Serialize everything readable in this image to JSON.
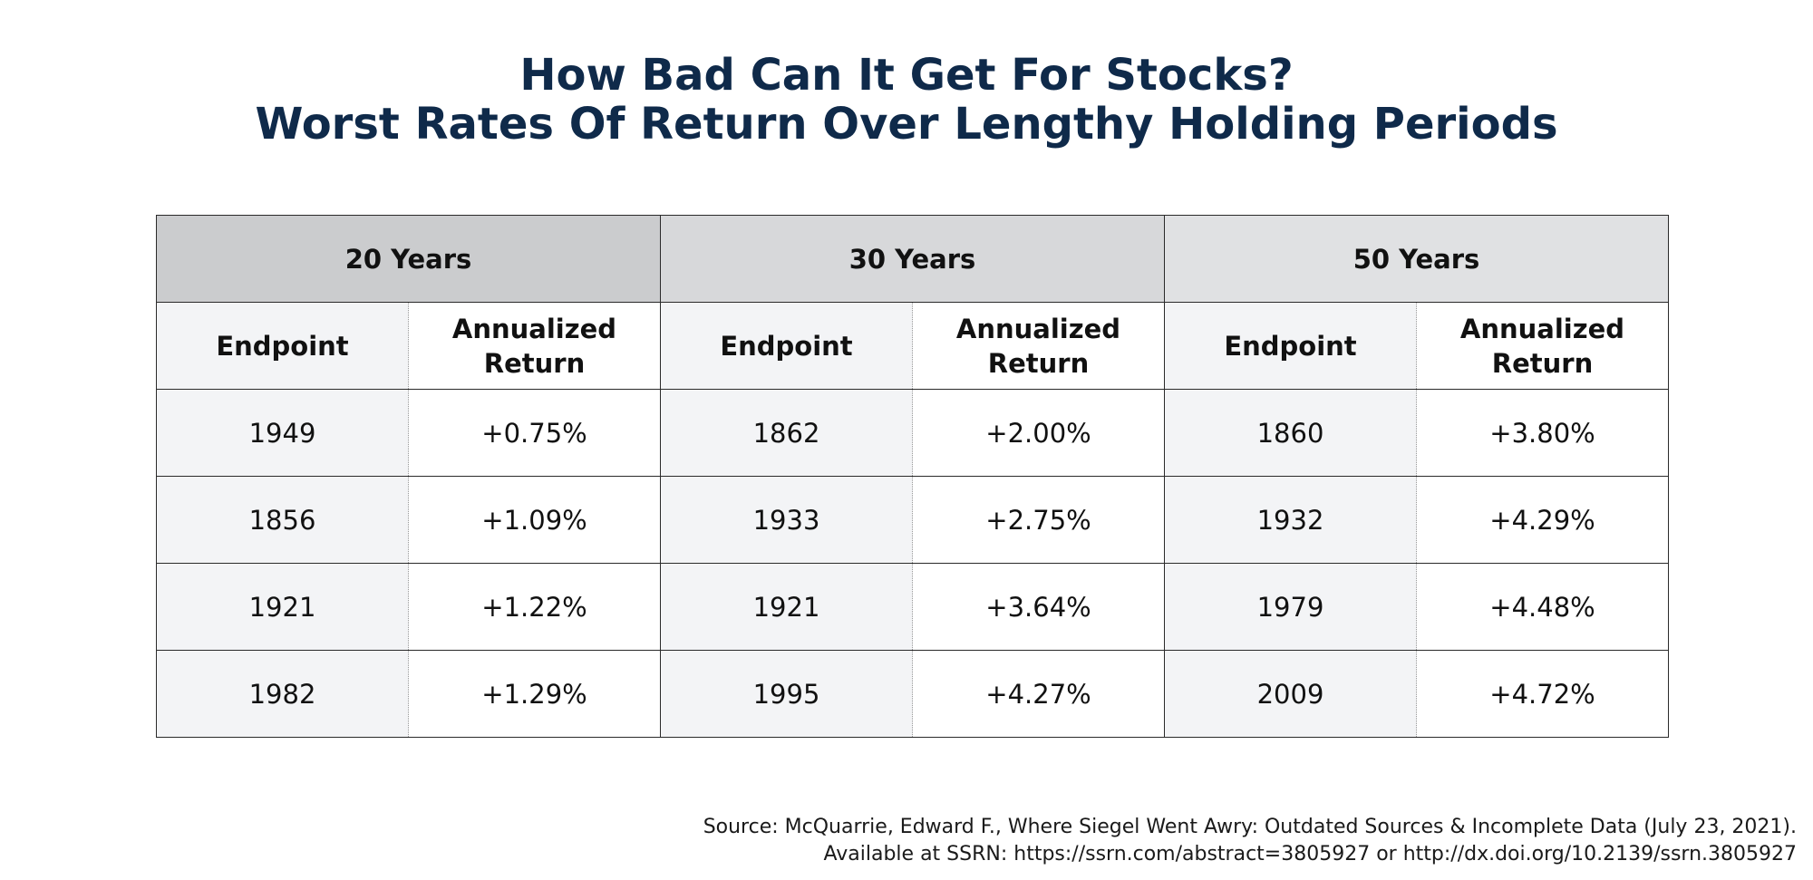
{
  "title": {
    "line1": "How Bad Can It Get For Stocks?",
    "line2": "Worst Rates Of Return Over Lengthy Holding Periods"
  },
  "chart_data": {
    "type": "table",
    "groups": [
      "20 Years",
      "30 Years",
      "50 Years"
    ],
    "columns": {
      "endpoint": "Endpoint",
      "annualized_return_line1": "Annualized",
      "annualized_return_line2": "Return"
    },
    "rows": [
      [
        "1949",
        "+0.75%",
        "1862",
        "+2.00%",
        "1860",
        "+3.80%"
      ],
      [
        "1856",
        "+1.09%",
        "1933",
        "+2.75%",
        "1932",
        "+4.29%"
      ],
      [
        "1921",
        "+1.22%",
        "1921",
        "+3.64%",
        "1979",
        "+4.48%"
      ],
      [
        "1982",
        "+1.29%",
        "1995",
        "+4.27%",
        "2009",
        "+4.72%"
      ]
    ]
  },
  "source": {
    "line1": "Source: McQuarrie, Edward F., Where Siegel Went Awry: Outdated Sources & Incomplete Data (July 23, 2021).",
    "line2": "Available at SSRN: https://ssrn.com/abstract=3805927 or http://dx.doi.org/10.2139/ssrn.3805927"
  }
}
